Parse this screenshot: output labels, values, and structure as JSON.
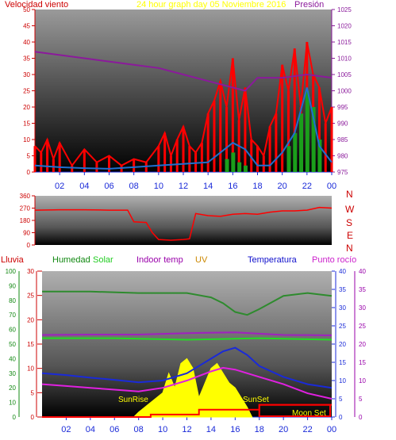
{
  "header": {
    "wind_label": "Velocidad viento",
    "title": "24 hour graph day   05 Noviembre 2016",
    "pressure_label": "Presión"
  },
  "legend_bottom": {
    "rain": "Lluvia",
    "humidity": "Humedad",
    "solar": "Solar",
    "indoor_temp": "Indoor temp",
    "uv": "UV",
    "temperature": "Temperatura",
    "dew_point": "Punto rocío"
  },
  "compass_letters": [
    "N",
    "W",
    "S",
    "E",
    "N"
  ],
  "annotations": {
    "sunrise": "SunRise",
    "sunset": "SunSet",
    "moonset": "Moon Set"
  },
  "colors": {
    "wind": "#ff0000",
    "gust_bars": "#ff0000",
    "avg_wind": "#1e6fd0",
    "pressure": "#8b1a9b",
    "humidity": "#2e8b2e",
    "solar": "#ffff00",
    "indoor_temp": "#a020c0",
    "temperature": "#1a2ad8",
    "dew_point": "#e020e0",
    "uv": "#cc8800",
    "rain": "#ff0000"
  },
  "chart_data": [
    {
      "type": "line",
      "name": "wind-pressure",
      "x_ticks": [
        "02",
        "04",
        "06",
        "08",
        "10",
        "12",
        "14",
        "16",
        "18",
        "20",
        "22",
        "00"
      ],
      "y_left_ticks": [
        "0",
        "5",
        "10",
        "15",
        "20",
        "25",
        "30",
        "35",
        "40",
        "45",
        "50"
      ],
      "y_left_range": [
        0,
        50
      ],
      "y_right_ticks": [
        "975",
        "980",
        "985",
        "990",
        "995",
        "1000",
        "1005",
        "1010",
        "1015",
        "1020",
        "1025"
      ],
      "y_right_range": [
        975,
        1025
      ],
      "pressure": {
        "x": [
          0,
          2,
          4,
          6,
          8,
          10,
          12,
          14,
          16,
          17,
          18,
          20,
          22,
          24
        ],
        "y": [
          1012,
          1011,
          1010,
          1009,
          1008,
          1007,
          1005,
          1003,
          1001,
          1000,
          1004,
          1004,
          1005,
          1004
        ]
      },
      "wind_gust": {
        "x": [
          0,
          0.5,
          1,
          1.5,
          2,
          3,
          4,
          5,
          6,
          7,
          8,
          9,
          10,
          10.5,
          11,
          11.5,
          12,
          12.5,
          13,
          13.5,
          14,
          14.5,
          15,
          15.5,
          16,
          16.5,
          17,
          17.5,
          18,
          18.5,
          19,
          19.5,
          20,
          20.5,
          21,
          21.5,
          22,
          22.5,
          23,
          23.5,
          24
        ],
        "y": [
          8,
          6,
          10,
          4,
          9,
          2,
          7,
          3,
          5,
          2,
          4,
          3,
          8,
          12,
          5,
          10,
          14,
          8,
          6,
          9,
          18,
          22,
          28,
          20,
          35,
          16,
          26,
          10,
          8,
          5,
          14,
          18,
          33,
          25,
          38,
          20,
          40,
          30,
          26,
          15,
          20
        ]
      },
      "wind_avg": {
        "x": [
          0,
          2,
          4,
          6,
          8,
          10,
          12,
          14,
          15,
          16,
          17,
          18,
          19,
          20,
          21,
          22,
          23,
          24
        ],
        "y": [
          2,
          1.5,
          1.2,
          1,
          1.5,
          2,
          2.5,
          3,
          6,
          9,
          7,
          2,
          2,
          6,
          12,
          26,
          8,
          3
        ]
      },
      "ground_bars": {
        "x": [
          15.5,
          16,
          16.5,
          17,
          20.5,
          21,
          21.5,
          22,
          22.5,
          23
        ],
        "y": [
          4,
          6,
          3,
          2,
          8,
          12,
          18,
          25,
          20,
          10
        ]
      }
    },
    {
      "type": "line",
      "name": "wind-direction",
      "y_ticks": [
        "360",
        "270",
        "180",
        "90",
        "0"
      ],
      "y_range": [
        0,
        360
      ],
      "direction": {
        "x": [
          0,
          2,
          4,
          6,
          7.5,
          8,
          9,
          9.5,
          10,
          11,
          12,
          12.5,
          13,
          14,
          15,
          16,
          17,
          18,
          19,
          20,
          21,
          22,
          23,
          24
        ],
        "y": [
          255,
          258,
          258,
          255,
          255,
          170,
          165,
          90,
          40,
          35,
          40,
          45,
          230,
          215,
          210,
          225,
          230,
          225,
          240,
          250,
          250,
          255,
          275,
          270
        ]
      }
    },
    {
      "type": "line",
      "name": "temp-humidity-solar",
      "y_left_ticks": [
        "0",
        "10",
        "20",
        "30",
        "40",
        "50",
        "60",
        "70",
        "80",
        "90",
        "100"
      ],
      "y_left_range": [
        0,
        100
      ],
      "y_mid_ticks": [
        "0",
        "5",
        "10",
        "15",
        "20",
        "25",
        "30"
      ],
      "y_mid_range": [
        0,
        30
      ],
      "y_right_ticks": [
        "0",
        "5",
        "10",
        "15",
        "20",
        "25",
        "30",
        "35",
        "40"
      ],
      "y_right_range": [
        0,
        40
      ],
      "humidity": {
        "x": [
          0,
          4,
          8,
          12,
          14,
          15,
          16,
          17,
          18,
          20,
          22,
          24
        ],
        "y": [
          86,
          86,
          85,
          85,
          82,
          78,
          72,
          70,
          74,
          83,
          85,
          83
        ]
      },
      "solar_line": {
        "x": [
          0,
          6,
          12,
          18,
          24
        ],
        "y": [
          54,
          54,
          53,
          54,
          53
        ]
      },
      "indoor_temp": {
        "x": [
          0,
          4,
          8,
          12,
          16,
          20,
          24
        ],
        "y": [
          22.5,
          22.6,
          22.6,
          23.0,
          23.2,
          22.5,
          22.4
        ]
      },
      "temperature": {
        "x": [
          0,
          2,
          4,
          6,
          8,
          10,
          12,
          14,
          15,
          16,
          17,
          18,
          20,
          22,
          24
        ],
        "y": [
          12,
          11.5,
          10.8,
          10.2,
          9.5,
          10,
          12,
          16,
          18,
          19,
          17,
          14,
          11,
          9,
          8
        ]
      },
      "dew_point": {
        "x": [
          0,
          2,
          4,
          6,
          8,
          10,
          12,
          14,
          15,
          16,
          18,
          20,
          22,
          24
        ],
        "y": [
          9,
          8.5,
          8,
          7.5,
          7,
          8,
          10,
          12.5,
          13.5,
          13,
          11,
          9,
          6.5,
          5
        ]
      },
      "solar_radiation": {
        "x": [
          7.6,
          8,
          8.5,
          9,
          9.5,
          10,
          10.5,
          11,
          11.5,
          12,
          12.5,
          13,
          13.5,
          14,
          14.5,
          15,
          15.5,
          16,
          16.5,
          17,
          17.4
        ],
        "y": [
          0,
          1,
          2,
          3,
          4,
          5,
          9,
          6,
          11,
          12,
          10,
          4,
          7,
          10,
          11,
          9,
          7,
          6,
          4,
          2,
          0
        ]
      },
      "rain": {
        "x": [
          0,
          8,
          9,
          13,
          18,
          24
        ],
        "y": [
          0,
          0,
          0.5,
          1.5,
          2.5,
          2.5
        ]
      }
    }
  ]
}
